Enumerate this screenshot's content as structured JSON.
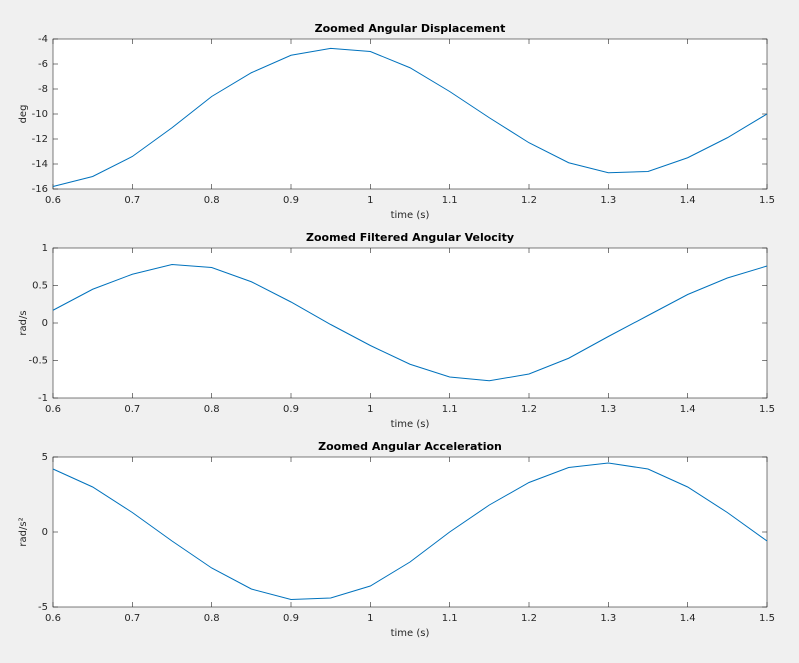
{
  "chart_data": [
    {
      "type": "line",
      "title": "Zoomed Angular Displacement",
      "xlabel": "time (s)",
      "ylabel": "deg",
      "x": [
        0.6,
        0.65,
        0.7,
        0.75,
        0.8,
        0.85,
        0.9,
        0.95,
        1.0,
        1.05,
        1.1,
        1.15,
        1.2,
        1.25,
        1.3,
        1.35,
        1.4,
        1.45,
        1.5
      ],
      "series": [
        {
          "color": "#0072bd",
          "values": [
            -15.8,
            -15.0,
            -13.4,
            -11.1,
            -8.6,
            -6.7,
            -5.3,
            -4.75,
            -5.0,
            -6.3,
            -8.2,
            -10.3,
            -12.3,
            -13.9,
            -14.7,
            -14.6,
            -13.5,
            -11.9,
            -10.0
          ]
        }
      ],
      "xlim": [
        0.6,
        1.5
      ],
      "xticks": [
        0.6,
        0.7,
        0.8,
        0.9,
        1,
        1.1,
        1.2,
        1.3,
        1.4,
        1.5
      ],
      "ylim": [
        -16,
        -4
      ],
      "yticks": [
        -16,
        -14,
        -12,
        -10,
        -8,
        -6,
        -4
      ]
    },
    {
      "type": "line",
      "title": "Zoomed Filtered Angular Velocity",
      "xlabel": "time (s)",
      "ylabel": "rad/s",
      "x": [
        0.6,
        0.65,
        0.7,
        0.75,
        0.8,
        0.85,
        0.9,
        0.95,
        1.0,
        1.05,
        1.1,
        1.15,
        1.2,
        1.25,
        1.3,
        1.35,
        1.4,
        1.45,
        1.5
      ],
      "series": [
        {
          "color": "#0072bd",
          "values": [
            0.17,
            0.45,
            0.65,
            0.78,
            0.74,
            0.55,
            0.28,
            -0.02,
            -0.3,
            -0.55,
            -0.72,
            -0.77,
            -0.68,
            -0.47,
            -0.18,
            0.1,
            0.38,
            0.6,
            0.76
          ]
        }
      ],
      "xlim": [
        0.6,
        1.5
      ],
      "xticks": [
        0.6,
        0.7,
        0.8,
        0.9,
        1,
        1.1,
        1.2,
        1.3,
        1.4,
        1.5
      ],
      "ylim": [
        -1,
        1
      ],
      "yticks": [
        -1,
        -0.5,
        0,
        0.5,
        1
      ]
    },
    {
      "type": "line",
      "title": "Zoomed Angular Acceleration",
      "xlabel": "time (s)",
      "ylabel": "rad/s²",
      "x": [
        0.6,
        0.65,
        0.7,
        0.75,
        0.8,
        0.85,
        0.9,
        0.95,
        1.0,
        1.05,
        1.1,
        1.15,
        1.2,
        1.25,
        1.3,
        1.35,
        1.4,
        1.45,
        1.5
      ],
      "series": [
        {
          "color": "#0072bd",
          "values": [
            4.2,
            3.0,
            1.3,
            -0.6,
            -2.4,
            -3.8,
            -4.5,
            -4.4,
            -3.6,
            -2.0,
            0.0,
            1.8,
            3.3,
            4.3,
            4.6,
            4.2,
            3.0,
            1.3,
            -0.6
          ]
        }
      ],
      "xlim": [
        0.6,
        1.5
      ],
      "xticks": [
        0.6,
        0.7,
        0.8,
        0.9,
        1,
        1.1,
        1.2,
        1.3,
        1.4,
        1.5
      ],
      "ylim": [
        -5,
        5
      ],
      "yticks": [
        -5,
        0,
        5
      ]
    }
  ]
}
